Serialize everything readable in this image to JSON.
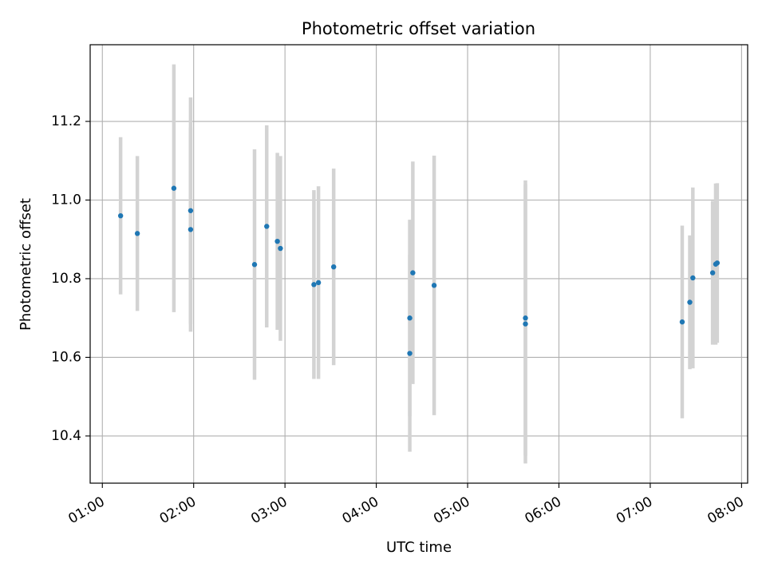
{
  "chart_data": {
    "type": "scatter",
    "title": "Photometric offset variation",
    "xlabel": "UTC time",
    "ylabel": "Photometric offset",
    "x_ticks": [
      "01:00",
      "02:00",
      "03:00",
      "04:00",
      "05:00",
      "06:00",
      "07:00",
      "08:00"
    ],
    "y_ticks": [
      "10.4",
      "10.6",
      "10.8",
      "11.0",
      "11.2"
    ],
    "xlim": [
      "00:52",
      "08:04"
    ],
    "ylim": [
      10.28,
      11.395
    ],
    "grid": true,
    "colors": {
      "marker": "#1f77b4",
      "errorbar": "#d3d3d3",
      "grid": "#b0b0b0"
    },
    "points": [
      {
        "x": "01:12",
        "y": 10.96,
        "yerr": 0.2
      },
      {
        "x": "01:23",
        "y": 10.915,
        "yerr": 0.197
      },
      {
        "x": "01:47",
        "y": 11.03,
        "yerr": 0.315
      },
      {
        "x": "01:58",
        "y": 10.925,
        "yerr": 0.26
      },
      {
        "x": "01:58",
        "y": 10.973,
        "yerr": 0.288
      },
      {
        "x": "02:40",
        "y": 10.836,
        "yerr": 0.293
      },
      {
        "x": "02:48",
        "y": 10.933,
        "yerr": 0.257
      },
      {
        "x": "02:55",
        "y": 10.895,
        "yerr": 0.225
      },
      {
        "x": "02:57",
        "y": 10.877,
        "yerr": 0.235
      },
      {
        "x": "03:19",
        "y": 10.785,
        "yerr": 0.24
      },
      {
        "x": "03:22",
        "y": 10.79,
        "yerr": 0.245
      },
      {
        "x": "03:32",
        "y": 10.83,
        "yerr": 0.25
      },
      {
        "x": "04:22",
        "y": 10.7,
        "yerr": 0.25
      },
      {
        "x": "04:22",
        "y": 10.61,
        "yerr": 0.25
      },
      {
        "x": "04:24",
        "y": 10.815,
        "yerr": 0.283
      },
      {
        "x": "04:38",
        "y": 10.783,
        "yerr": 0.33
      },
      {
        "x": "05:38",
        "y": 10.7,
        "yerr": 0.35
      },
      {
        "x": "05:38",
        "y": 10.685,
        "yerr": 0.355
      },
      {
        "x": "07:21",
        "y": 10.69,
        "yerr": 0.245
      },
      {
        "x": "07:26",
        "y": 10.74,
        "yerr": 0.17
      },
      {
        "x": "07:28",
        "y": 10.802,
        "yerr": 0.23
      },
      {
        "x": "07:41",
        "y": 10.815,
        "yerr": 0.183
      },
      {
        "x": "07:43",
        "y": 10.837,
        "yerr": 0.205
      },
      {
        "x": "07:44",
        "y": 10.84,
        "yerr": 0.203
      }
    ]
  }
}
